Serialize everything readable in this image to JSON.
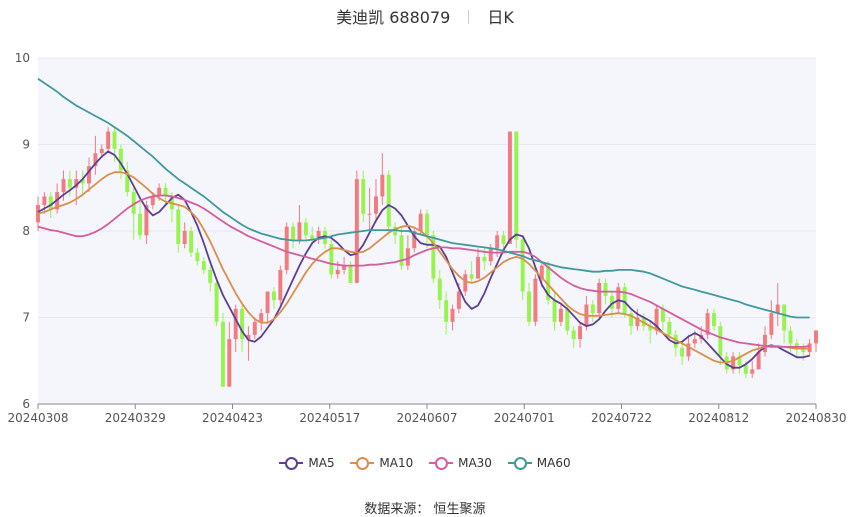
{
  "header": {
    "stock": "美迪凯 688079",
    "period": "日K"
  },
  "footer": {
    "source": "数据来源： 恒生聚源"
  },
  "colors": {
    "up": "#f07c82",
    "down": "#97f44f",
    "ma5": "#5b3f94",
    "ma10": "#dd8e4b",
    "ma30": "#d45e9e",
    "ma60": "#3f9a9d",
    "grid": "#e6e8f0",
    "plot_bg": "#f5f6fb"
  },
  "chart_data": {
    "type": "candlestick",
    "title": "美迪凯 688079 日K",
    "ylim": [
      6,
      10
    ],
    "y_ticks": [
      "6",
      "7",
      "8",
      "9",
      "10"
    ],
    "x_tick_labels": [
      "20240308",
      "20240329",
      "20240423",
      "20240517",
      "20240607",
      "20240701",
      "20240722",
      "20240812",
      "20240830"
    ],
    "grid": true,
    "legend_position": "bottom",
    "series": [
      {
        "name": "MA5",
        "color": "#5b3f94",
        "values": [
          8.22,
          8.26,
          8.3,
          8.36,
          8.42,
          8.47,
          8.53,
          8.6,
          8.69,
          8.78,
          8.86,
          8.92,
          8.88,
          8.78,
          8.66,
          8.52,
          8.38,
          8.26,
          8.18,
          8.22,
          8.3,
          8.38,
          8.42,
          8.36,
          8.22,
          8.06,
          7.86,
          7.64,
          7.44,
          7.26,
          7.12,
          6.98,
          6.84,
          6.74,
          6.72,
          6.78,
          6.88,
          6.98,
          7.12,
          7.28,
          7.44,
          7.6,
          7.74,
          7.86,
          7.92,
          7.94,
          7.92,
          7.86,
          7.78,
          7.72,
          7.74,
          7.84,
          7.98,
          8.12,
          8.24,
          8.3,
          8.26,
          8.18,
          8.06,
          7.94,
          7.86,
          7.84,
          7.84,
          7.82,
          7.7,
          7.52,
          7.34,
          7.18,
          7.1,
          7.14,
          7.28,
          7.46,
          7.62,
          7.78,
          7.9,
          7.96,
          7.94,
          7.8,
          7.58,
          7.38,
          7.26,
          7.2,
          7.16,
          7.1,
          7.02,
          6.94,
          6.9,
          6.92,
          6.98,
          7.08,
          7.16,
          7.2,
          7.18,
          7.1,
          7.04,
          7.0,
          6.96,
          6.9,
          6.82,
          6.74,
          6.7,
          6.72,
          6.78,
          6.82,
          6.78,
          6.7,
          6.62,
          6.54,
          6.46,
          6.42,
          6.42,
          6.46,
          6.52,
          6.6,
          6.66,
          6.68,
          6.66,
          6.62,
          6.58,
          6.54,
          6.54,
          6.56
        ]
      },
      {
        "name": "MA10",
        "color": "#dd8e4b",
        "values": [
          8.2,
          8.22,
          8.25,
          8.28,
          8.3,
          8.33,
          8.37,
          8.42,
          8.48,
          8.54,
          8.6,
          8.65,
          8.68,
          8.68,
          8.66,
          8.62,
          8.56,
          8.5,
          8.43,
          8.38,
          8.34,
          8.32,
          8.3,
          8.28,
          8.22,
          8.14,
          8.02,
          7.88,
          7.72,
          7.56,
          7.42,
          7.28,
          7.16,
          7.06,
          6.98,
          6.94,
          6.94,
          6.98,
          7.06,
          7.16,
          7.28,
          7.4,
          7.52,
          7.62,
          7.7,
          7.76,
          7.8,
          7.8,
          7.78,
          7.76,
          7.75,
          7.76,
          7.8,
          7.86,
          7.92,
          7.98,
          8.02,
          8.05,
          8.06,
          8.04,
          8.0,
          7.94,
          7.86,
          7.76,
          7.66,
          7.56,
          7.48,
          7.42,
          7.4,
          7.42,
          7.46,
          7.52,
          7.58,
          7.64,
          7.68,
          7.7,
          7.68,
          7.62,
          7.54,
          7.46,
          7.38,
          7.3,
          7.22,
          7.14,
          7.08,
          7.04,
          7.02,
          7.02,
          7.02,
          7.03,
          7.04,
          7.05,
          7.04,
          7.02,
          6.98,
          6.94,
          6.9,
          6.86,
          6.82,
          6.78,
          6.74,
          6.7,
          6.66,
          6.62,
          6.58,
          6.54,
          6.5,
          6.48,
          6.48,
          6.5,
          6.54,
          6.58,
          6.62,
          6.64,
          6.66,
          6.67,
          6.67,
          6.66,
          6.65,
          6.64,
          6.64,
          6.64
        ]
      },
      {
        "name": "MA30",
        "color": "#d45e9e",
        "values": [
          8.05,
          8.03,
          8.01,
          8.0,
          7.98,
          7.96,
          7.94,
          7.94,
          7.96,
          7.99,
          8.03,
          8.08,
          8.14,
          8.2,
          8.26,
          8.31,
          8.35,
          8.38,
          8.4,
          8.41,
          8.41,
          8.4,
          8.38,
          8.36,
          8.33,
          8.3,
          8.26,
          8.21,
          8.16,
          8.11,
          8.06,
          8.02,
          7.98,
          7.94,
          7.91,
          7.88,
          7.85,
          7.82,
          7.79,
          7.76,
          7.74,
          7.72,
          7.7,
          7.68,
          7.66,
          7.64,
          7.62,
          7.61,
          7.6,
          7.6,
          7.6,
          7.6,
          7.61,
          7.61,
          7.62,
          7.63,
          7.64,
          7.66,
          7.68,
          7.72,
          7.75,
          7.78,
          7.8,
          7.81,
          7.81,
          7.8,
          7.8,
          7.79,
          7.78,
          7.77,
          7.76,
          7.75,
          7.75,
          7.75,
          7.76,
          7.76,
          7.76,
          7.74,
          7.7,
          7.64,
          7.58,
          7.52,
          7.46,
          7.41,
          7.37,
          7.34,
          7.32,
          7.31,
          7.3,
          7.3,
          7.3,
          7.3,
          7.29,
          7.27,
          7.24,
          7.21,
          7.18,
          7.14,
          7.1,
          7.06,
          7.02,
          6.98,
          6.94,
          6.9,
          6.86,
          6.83,
          6.8,
          6.77,
          6.75,
          6.73,
          6.71,
          6.7,
          6.69,
          6.68,
          6.67,
          6.66,
          6.66,
          6.66,
          6.66,
          6.66,
          6.66,
          6.67
        ]
      },
      {
        "name": "MA60",
        "color": "#3f9a9d",
        "values": [
          9.76,
          9.71,
          9.66,
          9.61,
          9.55,
          9.5,
          9.45,
          9.41,
          9.37,
          9.33,
          9.29,
          9.25,
          9.2,
          9.15,
          9.1,
          9.04,
          8.98,
          8.92,
          8.86,
          8.79,
          8.72,
          8.66,
          8.6,
          8.55,
          8.5,
          8.45,
          8.4,
          8.34,
          8.28,
          8.22,
          8.17,
          8.12,
          8.07,
          8.03,
          8.0,
          7.97,
          7.95,
          7.93,
          7.91,
          7.9,
          7.89,
          7.89,
          7.89,
          7.9,
          7.91,
          7.92,
          7.94,
          7.96,
          7.97,
          7.98,
          7.99,
          8.0,
          8.01,
          8.01,
          8.01,
          8.01,
          8.01,
          8.0,
          8.0,
          7.98,
          7.96,
          7.94,
          7.92,
          7.9,
          7.88,
          7.86,
          7.85,
          7.84,
          7.83,
          7.82,
          7.81,
          7.8,
          7.79,
          7.77,
          7.75,
          7.73,
          7.71,
          7.68,
          7.66,
          7.64,
          7.62,
          7.6,
          7.58,
          7.57,
          7.56,
          7.55,
          7.54,
          7.53,
          7.53,
          7.54,
          7.54,
          7.55,
          7.55,
          7.55,
          7.54,
          7.53,
          7.51,
          7.48,
          7.45,
          7.42,
          7.39,
          7.36,
          7.34,
          7.32,
          7.3,
          7.28,
          7.26,
          7.24,
          7.22,
          7.2,
          7.18,
          7.15,
          7.13,
          7.11,
          7.09,
          7.07,
          7.05,
          7.03,
          7.01,
          7.0,
          7.0,
          7.0
        ]
      }
    ],
    "candles": [
      [
        8.1,
        8.3,
        8.4,
        8.0
      ],
      [
        8.3,
        8.4,
        8.45,
        8.2
      ],
      [
        8.4,
        8.25,
        8.45,
        8.15
      ],
      [
        8.25,
        8.45,
        8.55,
        8.2
      ],
      [
        8.45,
        8.6,
        8.7,
        8.35
      ],
      [
        8.6,
        8.5,
        8.7,
        8.4
      ],
      [
        8.5,
        8.6,
        8.7,
        8.3
      ],
      [
        8.6,
        8.55,
        8.7,
        8.4
      ],
      [
        8.55,
        8.75,
        8.85,
        8.45
      ],
      [
        8.75,
        8.9,
        9.1,
        8.65
      ],
      [
        8.9,
        8.95,
        9.0,
        8.85
      ],
      [
        8.95,
        9.15,
        9.2,
        8.9
      ],
      [
        9.15,
        8.95,
        9.2,
        8.8
      ],
      [
        8.95,
        8.7,
        9.0,
        8.6
      ],
      [
        8.7,
        8.45,
        8.8,
        8.4
      ],
      [
        8.45,
        8.2,
        8.5,
        7.9
      ],
      [
        8.2,
        7.95,
        8.4,
        7.9
      ],
      [
        7.95,
        8.3,
        8.35,
        7.85
      ],
      [
        8.3,
        8.4,
        8.45,
        8.25
      ],
      [
        8.4,
        8.5,
        8.55,
        8.35
      ],
      [
        8.5,
        8.4,
        8.55,
        8.3
      ],
      [
        8.4,
        8.25,
        8.45,
        8.1
      ],
      [
        8.25,
        7.85,
        8.3,
        7.75
      ],
      [
        7.85,
        8.0,
        8.1,
        7.8
      ],
      [
        8.0,
        7.75,
        8.05,
        7.7
      ],
      [
        7.75,
        7.65,
        7.8,
        7.6
      ],
      [
        7.65,
        7.55,
        7.7,
        7.5
      ],
      [
        7.55,
        7.4,
        7.6,
        7.3
      ],
      [
        7.4,
        6.95,
        7.45,
        6.9
      ],
      [
        6.95,
        6.2,
        7.05,
        6.2
      ],
      [
        6.2,
        6.75,
        6.95,
        6.2
      ],
      [
        6.75,
        7.1,
        7.15,
        6.6
      ],
      [
        7.1,
        6.75,
        7.15,
        6.6
      ],
      [
        6.75,
        6.8,
        6.9,
        6.5
      ],
      [
        6.8,
        6.95,
        7.0,
        6.75
      ],
      [
        6.95,
        7.05,
        7.1,
        6.85
      ],
      [
        7.05,
        7.3,
        7.3,
        6.95
      ],
      [
        7.3,
        7.2,
        7.35,
        7.1
      ],
      [
        7.2,
        7.55,
        7.6,
        7.15
      ],
      [
        7.55,
        8.05,
        8.1,
        7.5
      ],
      [
        8.05,
        7.9,
        8.1,
        7.8
      ],
      [
        7.9,
        8.1,
        8.3,
        7.85
      ],
      [
        8.1,
        7.95,
        8.15,
        7.9
      ],
      [
        7.95,
        7.9,
        8.05,
        7.85
      ],
      [
        7.9,
        8.0,
        8.05,
        7.85
      ],
      [
        8.0,
        7.85,
        8.05,
        7.8
      ],
      [
        7.85,
        7.5,
        7.9,
        7.45
      ],
      [
        7.5,
        7.55,
        7.65,
        7.45
      ],
      [
        7.55,
        7.6,
        7.7,
        7.5
      ],
      [
        7.6,
        7.4,
        7.65,
        7.4
      ],
      [
        7.4,
        8.6,
        8.7,
        7.4
      ],
      [
        8.6,
        8.2,
        8.7,
        8.1
      ],
      [
        8.2,
        8.2,
        8.5,
        8.0
      ],
      [
        8.2,
        8.4,
        8.6,
        8.1
      ],
      [
        8.4,
        8.65,
        8.9,
        8.3
      ],
      [
        8.65,
        8.05,
        8.7,
        7.95
      ],
      [
        8.05,
        7.95,
        8.1,
        7.85
      ],
      [
        7.95,
        7.6,
        8.05,
        7.55
      ],
      [
        7.6,
        7.8,
        7.95,
        7.55
      ],
      [
        7.8,
        8.0,
        8.05,
        7.75
      ],
      [
        8.0,
        8.2,
        8.25,
        7.95
      ],
      [
        8.2,
        7.95,
        8.25,
        7.8
      ],
      [
        7.95,
        7.45,
        8.0,
        7.4
      ],
      [
        7.45,
        7.2,
        7.55,
        7.1
      ],
      [
        7.2,
        6.95,
        7.3,
        6.8
      ],
      [
        6.95,
        7.1,
        7.15,
        6.85
      ],
      [
        7.1,
        7.3,
        7.4,
        7.05
      ],
      [
        7.3,
        7.5,
        7.55,
        7.25
      ],
      [
        7.5,
        7.45,
        7.65,
        7.4
      ],
      [
        7.45,
        7.7,
        7.8,
        7.45
      ],
      [
        7.7,
        7.65,
        7.8,
        7.55
      ],
      [
        7.65,
        7.8,
        7.85,
        7.6
      ],
      [
        7.8,
        7.95,
        8.0,
        7.7
      ],
      [
        7.95,
        7.85,
        8.0,
        7.8
      ],
      [
        7.85,
        9.15,
        9.15,
        8.15
      ],
      [
        9.15,
        7.9,
        9.15,
        7.8
      ],
      [
        7.9,
        7.3,
        7.95,
        7.2
      ],
      [
        7.3,
        6.95,
        7.4,
        6.9
      ],
      [
        6.95,
        7.45,
        7.5,
        6.9
      ],
      [
        7.45,
        7.6,
        7.65,
        7.35
      ],
      [
        7.6,
        7.2,
        7.65,
        7.15
      ],
      [
        7.2,
        6.95,
        7.3,
        6.85
      ],
      [
        6.95,
        7.1,
        7.15,
        6.9
      ],
      [
        7.1,
        6.85,
        7.15,
        6.8
      ],
      [
        6.85,
        6.75,
        6.9,
        6.65
      ],
      [
        6.75,
        6.9,
        6.95,
        6.65
      ],
      [
        6.9,
        7.15,
        7.25,
        6.85
      ],
      [
        7.15,
        7.05,
        7.2,
        6.95
      ],
      [
        7.05,
        7.4,
        7.45,
        7.0
      ],
      [
        7.4,
        7.25,
        7.45,
        7.15
      ],
      [
        7.25,
        7.1,
        7.3,
        7.0
      ],
      [
        7.1,
        7.35,
        7.4,
        7.05
      ],
      [
        7.35,
        7.05,
        7.4,
        7.0
      ],
      [
        7.05,
        6.9,
        7.1,
        6.8
      ],
      [
        6.9,
        7.0,
        7.1,
        6.85
      ],
      [
        7.0,
        6.9,
        7.05,
        6.85
      ],
      [
        6.9,
        6.85,
        6.95,
        6.7
      ],
      [
        6.85,
        7.1,
        7.15,
        6.8
      ],
      [
        7.1,
        6.95,
        7.15,
        6.85
      ],
      [
        6.95,
        6.8,
        7.0,
        6.75
      ],
      [
        6.8,
        6.65,
        6.85,
        6.55
      ],
      [
        6.65,
        6.55,
        6.7,
        6.45
      ],
      [
        6.55,
        6.7,
        6.8,
        6.5
      ],
      [
        6.7,
        6.75,
        6.85,
        6.65
      ],
      [
        6.75,
        6.8,
        6.9,
        6.7
      ],
      [
        6.8,
        7.05,
        7.1,
        6.75
      ],
      [
        7.05,
        6.9,
        7.1,
        6.85
      ],
      [
        6.9,
        6.55,
        6.95,
        6.45
      ],
      [
        6.55,
        6.4,
        6.6,
        6.35
      ],
      [
        6.4,
        6.55,
        6.6,
        6.35
      ],
      [
        6.55,
        6.45,
        6.6,
        6.35
      ],
      [
        6.45,
        6.35,
        6.5,
        6.3
      ],
      [
        6.35,
        6.4,
        6.5,
        6.3
      ],
      [
        6.4,
        6.6,
        6.7,
        6.4
      ],
      [
        6.6,
        6.8,
        6.9,
        6.55
      ],
      [
        6.8,
        7.05,
        7.2,
        6.75
      ],
      [
        7.05,
        7.15,
        7.4,
        6.9
      ],
      [
        7.15,
        6.85,
        7.15,
        6.7
      ],
      [
        6.85,
        6.7,
        6.9,
        6.6
      ],
      [
        6.7,
        6.65,
        6.75,
        6.55
      ],
      [
        6.65,
        6.6,
        6.7,
        6.5
      ],
      [
        6.6,
        6.7,
        6.75,
        6.55
      ],
      [
        6.7,
        6.85,
        6.85,
        6.6
      ]
    ]
  }
}
